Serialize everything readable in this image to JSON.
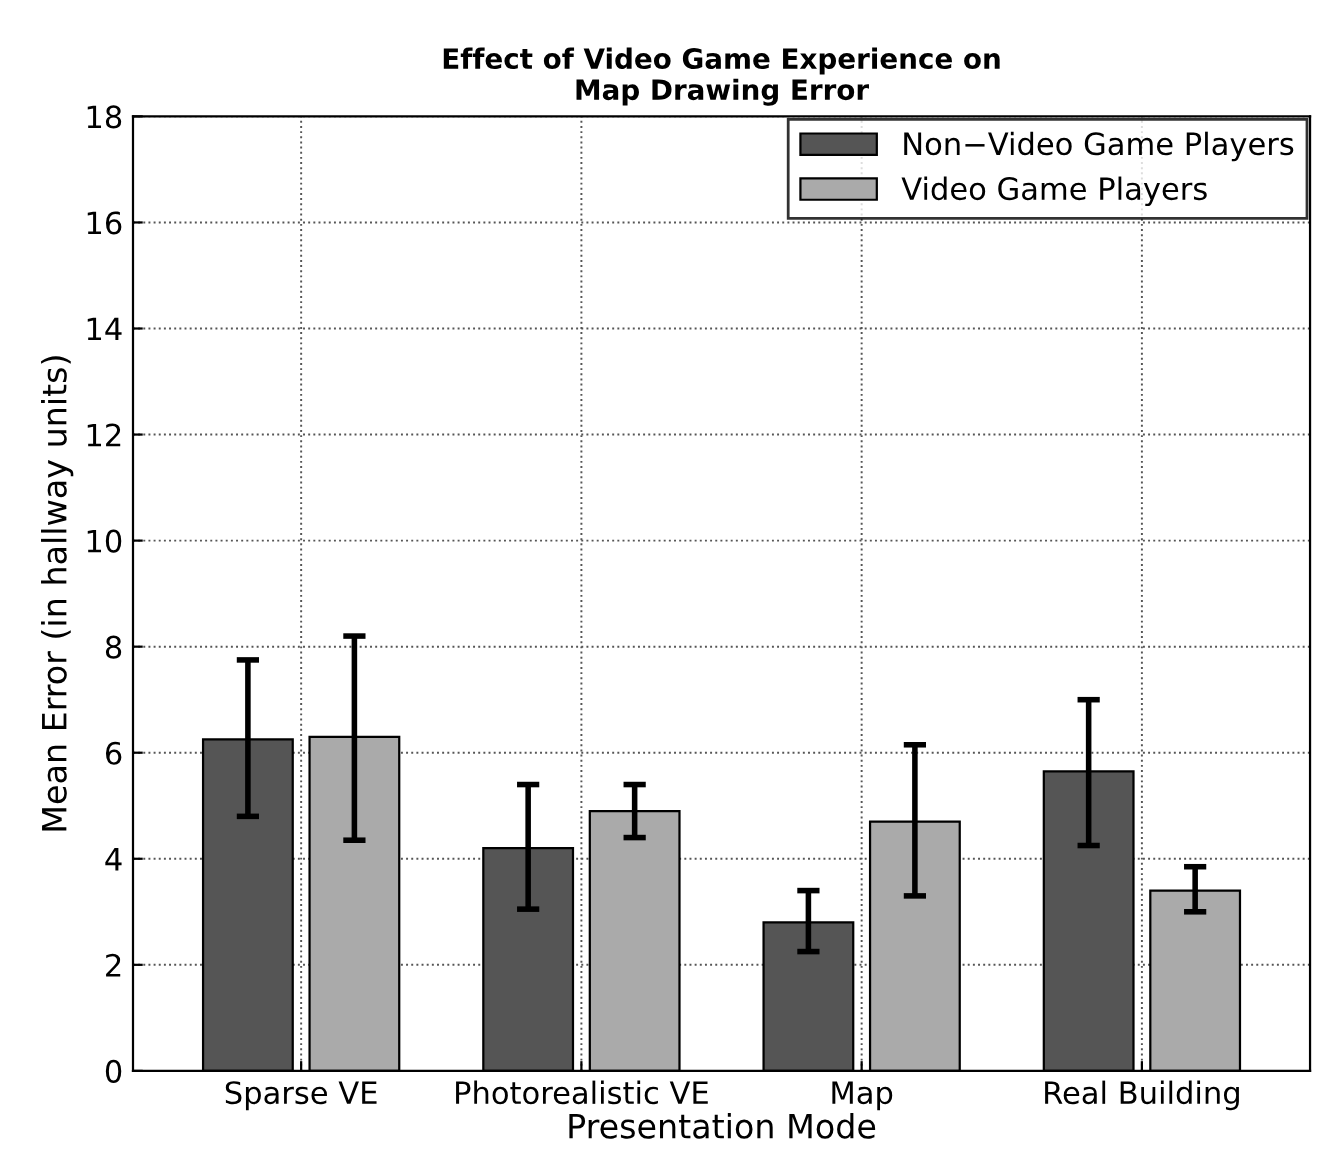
{
  "chart_data": {
    "type": "bar",
    "title": "Effect of Video Game Experience on\nMap Drawing Error",
    "xlabel": "Presentation Mode",
    "ylabel": "Mean Error (in hallway units)",
    "categories": [
      "Sparse VE",
      "Photorealistic VE",
      "Map",
      "Real Building"
    ],
    "series": [
      {
        "name": "Non−Video Game Players",
        "color": "#555555",
        "values": [
          6.25,
          4.2,
          2.8,
          5.65
        ],
        "errors": [
          [
            4.8,
            7.75
          ],
          [
            3.05,
            5.4
          ],
          [
            2.25,
            3.4
          ],
          [
            4.25,
            7.0
          ]
        ]
      },
      {
        "name": "Video Game Players",
        "color": "#aaaaaa",
        "values": [
          6.3,
          4.9,
          4.7,
          3.4
        ],
        "errors": [
          [
            4.35,
            8.2
          ],
          [
            4.4,
            5.4
          ],
          [
            3.3,
            6.15
          ],
          [
            3.0,
            3.85
          ]
        ]
      }
    ],
    "ylim": [
      0,
      18
    ],
    "yticks": [
      0,
      2,
      4,
      6,
      8,
      10,
      12,
      14,
      16,
      18
    ],
    "grid": true,
    "legend": "top right"
  }
}
